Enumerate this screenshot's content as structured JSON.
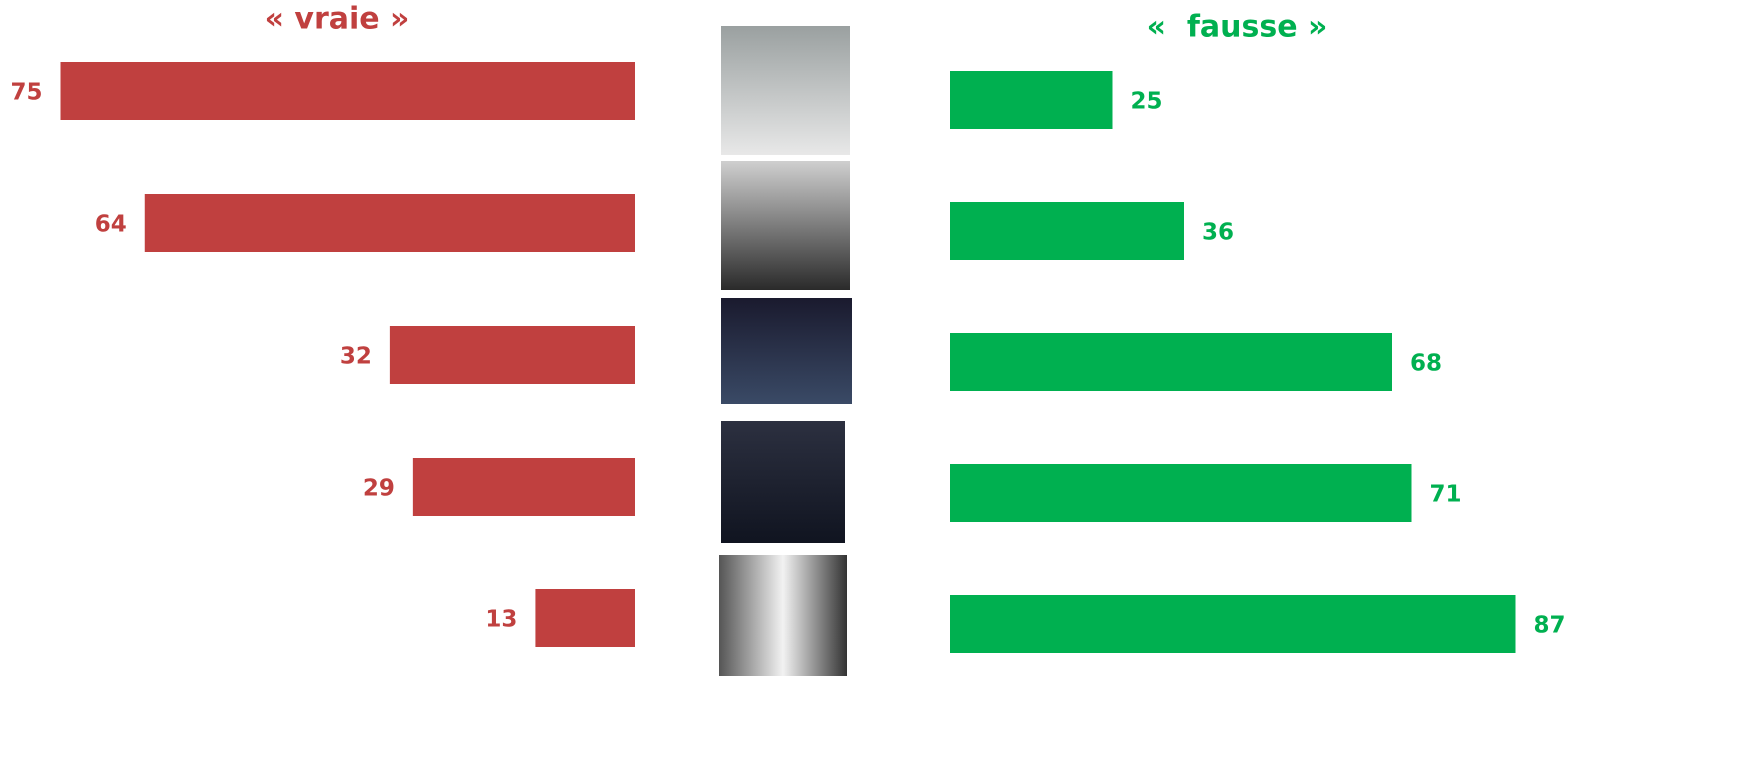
{
  "chart_data": [
    {
      "type": "bar",
      "orientation": "horizontal",
      "title": "« vraie »",
      "values": [
        75,
        64,
        32,
        29,
        13
      ],
      "color": "#c0403f",
      "direction": "left"
    },
    {
      "type": "bar",
      "orientation": "horizontal",
      "title": "«  fausse »",
      "values": [
        25,
        36,
        68,
        71,
        87
      ],
      "color": "#00b050",
      "direction": "right"
    }
  ]
}
